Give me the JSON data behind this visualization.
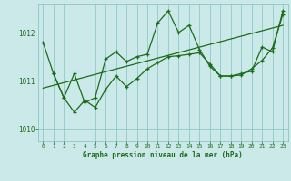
{
  "title": "Graphe pression niveau de la mer (hPa)",
  "bg_color": "#cce9e9",
  "line_color": "#1a6b1a",
  "marker_color": "#1a6b1a",
  "grid_color": "#7dbfbf",
  "xlim": [
    -0.5,
    23.5
  ],
  "ylim": [
    1009.75,
    1012.6
  ],
  "yticks": [
    1010,
    1011,
    1012
  ],
  "xticks": [
    0,
    1,
    2,
    3,
    4,
    5,
    6,
    7,
    8,
    9,
    10,
    11,
    12,
    13,
    14,
    15,
    16,
    17,
    18,
    19,
    20,
    21,
    22,
    23
  ],
  "series1_x": [
    0,
    1,
    2,
    3,
    4,
    5,
    6,
    7,
    8,
    9,
    10,
    11,
    12,
    13,
    14,
    15,
    16,
    17,
    18,
    19,
    20,
    21,
    22,
    23
  ],
  "series1_y": [
    1011.8,
    1011.15,
    1010.65,
    1011.15,
    1010.55,
    1010.65,
    1011.45,
    1011.6,
    1011.4,
    1011.5,
    1011.55,
    1012.2,
    1012.45,
    1012.0,
    1012.15,
    1011.65,
    1011.3,
    1011.1,
    1011.1,
    1011.15,
    1011.2,
    1011.7,
    1011.6,
    1012.45
  ],
  "series2_x": [
    1,
    2,
    3,
    4,
    5,
    6,
    7,
    8,
    9,
    10,
    11,
    12,
    13,
    14,
    15,
    16,
    17,
    18,
    19,
    20,
    21,
    22,
    23
  ],
  "series2_y": [
    1011.15,
    1010.65,
    1010.35,
    1010.6,
    1010.45,
    1010.82,
    1011.1,
    1010.88,
    1011.05,
    1011.25,
    1011.38,
    1011.5,
    1011.52,
    1011.55,
    1011.58,
    1011.35,
    1011.1,
    1011.1,
    1011.12,
    1011.25,
    1011.42,
    1011.68,
    1012.38
  ],
  "trend_x": [
    0,
    23
  ],
  "trend_y": [
    1010.85,
    1012.15
  ]
}
